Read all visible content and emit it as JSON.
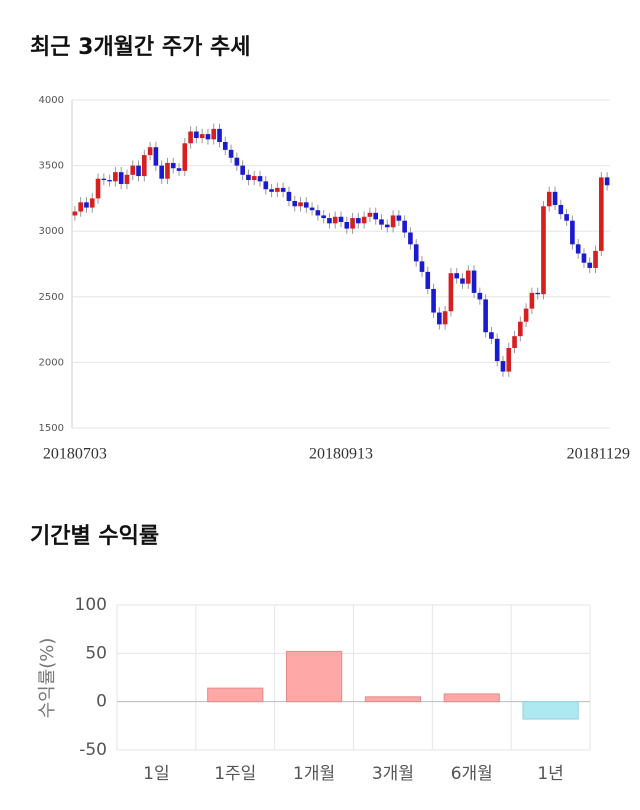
{
  "chart_data": [
    {
      "type": "candlestick",
      "title": "최근 3개월간 주가 추세",
      "categories": [
        "20180703",
        null,
        null,
        null,
        null,
        null,
        null,
        null,
        null,
        null,
        null,
        null,
        null,
        null,
        null,
        null,
        null,
        null,
        null,
        null,
        null,
        null,
        null,
        null,
        null,
        null,
        null,
        null,
        null,
        null,
        null,
        null,
        null,
        null,
        null,
        null,
        null,
        null,
        null,
        null,
        null,
        null,
        null,
        null,
        null,
        null,
        "20180913",
        null,
        null,
        null,
        null,
        null,
        null,
        null,
        null,
        null,
        null,
        null,
        null,
        null,
        null,
        null,
        null,
        null,
        null,
        null,
        null,
        null,
        null,
        null,
        null,
        null,
        null,
        null,
        null,
        null,
        null,
        null,
        null,
        null,
        null,
        null,
        null,
        null,
        null,
        null,
        null,
        null,
        null,
        null,
        null,
        null,
        "20181129"
      ],
      "open": [
        3120,
        3150,
        3220,
        3180,
        3250,
        3400,
        3390,
        3380,
        3450,
        3360,
        3430,
        3500,
        3420,
        3580,
        3640,
        3500,
        3400,
        3520,
        3480,
        3460,
        3670,
        3760,
        3710,
        3740,
        3700,
        3780,
        3680,
        3620,
        3560,
        3500,
        3430,
        3390,
        3420,
        3380,
        3320,
        3300,
        3330,
        3300,
        3230,
        3190,
        3220,
        3180,
        3160,
        3120,
        3100,
        3060,
        3110,
        3070,
        3020,
        3100,
        3060,
        3110,
        3140,
        3090,
        3050,
        3030,
        3120,
        3080,
        2990,
        2900,
        2770,
        2690,
        2560,
        2380,
        2290,
        2390,
        2680,
        2640,
        2600,
        2700,
        2530,
        2480,
        2230,
        2180,
        2010,
        1930,
        2110,
        2200,
        2310,
        2410,
        2530,
        2520,
        3190,
        3300,
        3200,
        3130,
        3080,
        2900,
        2830,
        2760,
        2720,
        2850,
        3410
      ],
      "close": [
        3150,
        3220,
        3180,
        3250,
        3400,
        3390,
        3380,
        3450,
        3360,
        3430,
        3500,
        3420,
        3580,
        3640,
        3500,
        3400,
        3520,
        3480,
        3460,
        3670,
        3760,
        3710,
        3740,
        3700,
        3780,
        3680,
        3620,
        3560,
        3500,
        3430,
        3390,
        3420,
        3380,
        3320,
        3300,
        3330,
        3300,
        3230,
        3190,
        3220,
        3180,
        3160,
        3120,
        3100,
        3060,
        3110,
        3070,
        3020,
        3100,
        3060,
        3110,
        3140,
        3090,
        3050,
        3030,
        3120,
        3080,
        2990,
        2900,
        2770,
        2690,
        2560,
        2380,
        2290,
        2390,
        2680,
        2640,
        2600,
        2700,
        2530,
        2480,
        2230,
        2180,
        2010,
        1930,
        2110,
        2200,
        2310,
        2410,
        2530,
        2520,
        3190,
        3300,
        3200,
        3130,
        3080,
        2900,
        2830,
        2760,
        2720,
        2850,
        3410,
        3350
      ],
      "high": [
        3190,
        3260,
        3260,
        3290,
        3440,
        3440,
        3430,
        3490,
        3490,
        3470,
        3540,
        3540,
        3620,
        3680,
        3680,
        3540,
        3560,
        3560,
        3520,
        3710,
        3800,
        3800,
        3780,
        3780,
        3820,
        3820,
        3720,
        3660,
        3600,
        3540,
        3470,
        3460,
        3460,
        3420,
        3360,
        3370,
        3370,
        3340,
        3270,
        3260,
        3260,
        3220,
        3200,
        3160,
        3140,
        3150,
        3150,
        3110,
        3140,
        3140,
        3150,
        3180,
        3180,
        3130,
        3090,
        3160,
        3160,
        3120,
        3030,
        2940,
        2810,
        2730,
        2600,
        2420,
        2430,
        2720,
        2720,
        2680,
        2740,
        2740,
        2570,
        2520,
        2270,
        2220,
        2050,
        2150,
        2240,
        2350,
        2450,
        2570,
        2570,
        3230,
        3340,
        3340,
        3240,
        3170,
        3120,
        2940,
        2870,
        2800,
        2890,
        3450,
        3450
      ],
      "low": [
        3080,
        3110,
        3140,
        3140,
        3210,
        3350,
        3340,
        3340,
        3320,
        3320,
        3390,
        3380,
        3380,
        3540,
        3460,
        3360,
        3360,
        3440,
        3420,
        3420,
        3630,
        3670,
        3670,
        3660,
        3660,
        3640,
        3580,
        3520,
        3460,
        3390,
        3350,
        3350,
        3340,
        3280,
        3260,
        3260,
        3260,
        3190,
        3150,
        3150,
        3140,
        3120,
        3080,
        3060,
        3020,
        3020,
        3030,
        2980,
        2980,
        3020,
        3020,
        3070,
        3050,
        3010,
        2990,
        2990,
        3040,
        2950,
        2860,
        2730,
        2650,
        2520,
        2340,
        2250,
        2250,
        2350,
        2600,
        2560,
        2560,
        2490,
        2440,
        2190,
        2140,
        1970,
        1890,
        1890,
        2070,
        2160,
        2270,
        2370,
        2480,
        2480,
        3150,
        3160,
        3090,
        3040,
        2860,
        2790,
        2720,
        2680,
        2680,
        2810,
        3310
      ],
      "up_color": "#d61f1f",
      "down_color": "#1a1ad1",
      "ylim": [
        1500,
        4000
      ],
      "yticks": [
        1500,
        2000,
        2500,
        3000,
        3500,
        4000
      ],
      "grid": true
    },
    {
      "type": "bar",
      "title": "기간별 수익률",
      "y_label": "수익률(%)",
      "categories": [
        "1일",
        "1주일",
        "1개월",
        "3개월",
        "6개월",
        "1년"
      ],
      "values": [
        0,
        14,
        52,
        5,
        8,
        -18
      ],
      "positive_color": "#ffa8a8",
      "negative_color": "#aee9f1",
      "ylim": [
        -50,
        100
      ],
      "yticks": [
        -50,
        0,
        50,
        100
      ],
      "grid": true
    }
  ]
}
